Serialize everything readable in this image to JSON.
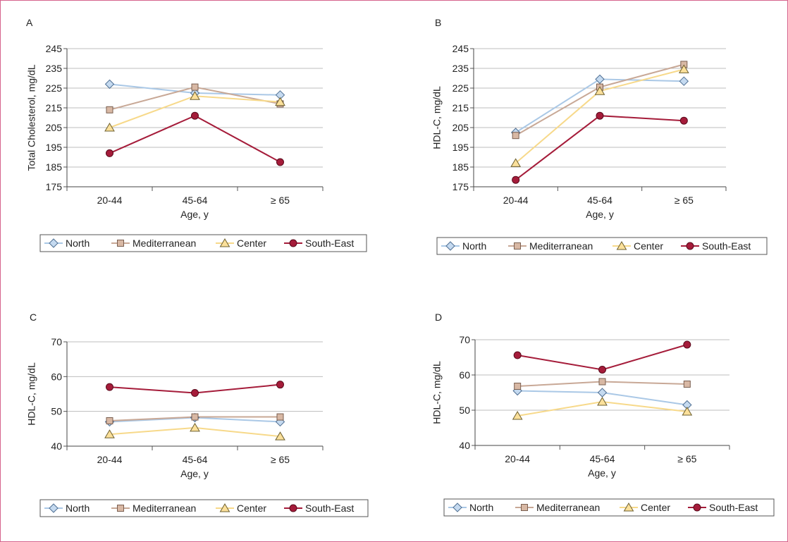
{
  "colors": {
    "North": "#aac8e6",
    "Mediterranean": "#c8a896",
    "Center": "#f7d98a",
    "South-East": "#a51c3a",
    "frame": "#d5638c"
  },
  "chart_data": [
    {
      "panel": "A",
      "type": "line",
      "categories": [
        "20-44",
        "45-64",
        "≥ 65"
      ],
      "xlabel": "Age, y",
      "ylabel": "Total Cholesterol, mg/dL",
      "ylim": [
        175,
        245
      ],
      "yticks": [
        175,
        185,
        195,
        205,
        215,
        225,
        235,
        245
      ],
      "grid": true,
      "legend": "bottom",
      "series": [
        {
          "name": "North",
          "marker": "diamond",
          "values": [
            227,
            222.5,
            221.5
          ]
        },
        {
          "name": "Mediterranean",
          "marker": "square",
          "values": [
            214,
            225.5,
            217
          ]
        },
        {
          "name": "Center",
          "marker": "triangle",
          "values": [
            205,
            221,
            218
          ]
        },
        {
          "name": "South-East",
          "marker": "circle",
          "values": [
            192,
            211,
            187.5
          ]
        }
      ]
    },
    {
      "panel": "B",
      "type": "line",
      "categories": [
        "20-44",
        "45-64",
        "≥ 65"
      ],
      "xlabel": "Age, y",
      "ylabel": "HDL-C, mg/dL",
      "ylim": [
        175,
        245
      ],
      "yticks": [
        175,
        185,
        195,
        205,
        215,
        225,
        235,
        245
      ],
      "grid": true,
      "legend": "bottom",
      "series": [
        {
          "name": "North",
          "marker": "diamond",
          "values": [
            202.5,
            229.5,
            228.5
          ]
        },
        {
          "name": "Mediterranean",
          "marker": "square",
          "values": [
            201,
            225.5,
            237
          ]
        },
        {
          "name": "Center",
          "marker": "triangle",
          "values": [
            187,
            223.5,
            234.5
          ]
        },
        {
          "name": "South-East",
          "marker": "circle",
          "values": [
            178.5,
            211,
            208.5
          ]
        }
      ]
    },
    {
      "panel": "C",
      "type": "line",
      "categories": [
        "20-44",
        "45-64",
        "≥ 65"
      ],
      "xlabel": "Age, y",
      "ylabel": "HDL-C, mg/dL",
      "ylim": [
        40,
        70
      ],
      "yticks": [
        40,
        50,
        60,
        70
      ],
      "grid": true,
      "legend": "bottom",
      "series": [
        {
          "name": "North",
          "marker": "diamond",
          "values": [
            47,
            48.2,
            47
          ]
        },
        {
          "name": "Mediterranean",
          "marker": "square",
          "values": [
            47.3,
            48.4,
            48.4
          ]
        },
        {
          "name": "Center",
          "marker": "triangle",
          "values": [
            43.4,
            45.3,
            42.8
          ]
        },
        {
          "name": "South-East",
          "marker": "circle",
          "values": [
            57,
            55.3,
            57.7
          ]
        }
      ]
    },
    {
      "panel": "D",
      "type": "line",
      "categories": [
        "20-44",
        "45-64",
        "≥ 65"
      ],
      "xlabel": "Age, y",
      "ylabel": "HDL-C, mg/dL",
      "ylim": [
        40,
        70
      ],
      "yticks": [
        40,
        50,
        60,
        70
      ],
      "grid": true,
      "legend": "bottom",
      "series": [
        {
          "name": "North",
          "marker": "diamond",
          "values": [
            55.5,
            55,
            51.5
          ]
        },
        {
          "name": "Mediterranean",
          "marker": "square",
          "values": [
            56.8,
            58.1,
            57.4
          ]
        },
        {
          "name": "Center",
          "marker": "triangle",
          "values": [
            48.4,
            52.4,
            49.6
          ]
        },
        {
          "name": "South-East",
          "marker": "circle",
          "values": [
            65.6,
            61.5,
            68.6
          ]
        }
      ]
    }
  ]
}
